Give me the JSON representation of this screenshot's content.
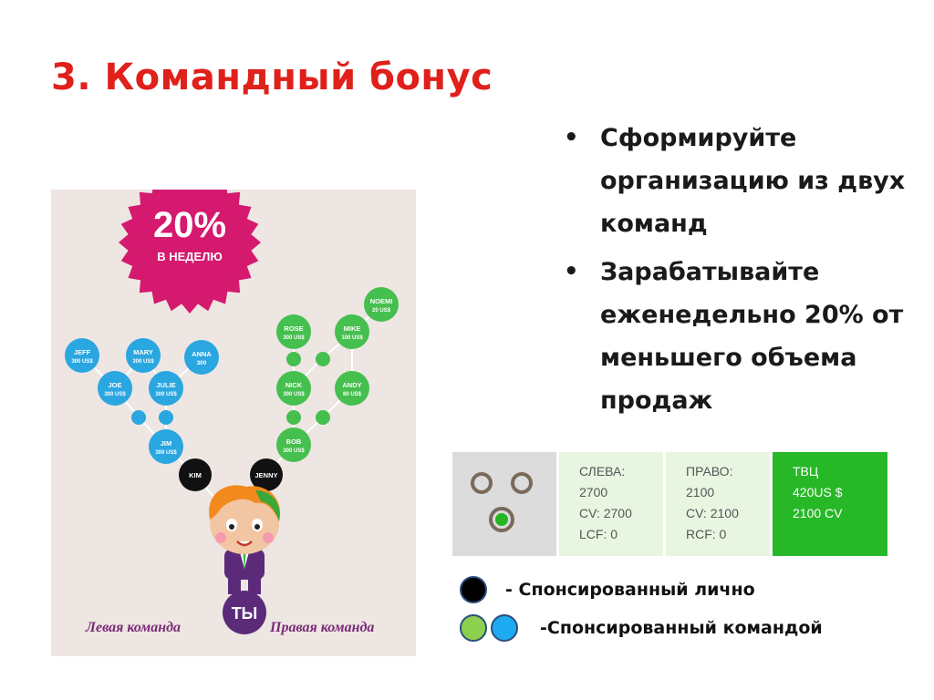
{
  "slide": {
    "title": "3. Командный бонус",
    "bullets": [
      "Сформируйте организацию из двух команд",
      "Зарабатывайте еженедельно 20% от меньшего объема продаж"
    ]
  },
  "infographic": {
    "badge": {
      "percent": "20%",
      "period": "В НЕДЕЛЮ",
      "color": "#d4196e"
    },
    "nodes": {
      "jeff": [
        "JEFF",
        "300 US$"
      ],
      "mary": [
        "MARY",
        "300 US$"
      ],
      "anna": [
        "ANNA",
        "300"
      ],
      "joe": [
        "JOE",
        "300 US$"
      ],
      "julie": [
        "JULIE",
        "300 US$"
      ],
      "jim": [
        "JIM",
        "300 US$"
      ],
      "noemi": [
        "NOEMI",
        "20 US$"
      ],
      "rose": [
        "ROSE",
        "300 US$"
      ],
      "mike": [
        "MIKE",
        "100 US$"
      ],
      "nick": [
        "NICK",
        "300 US$"
      ],
      "andy": [
        "ANDY",
        "80 US$"
      ],
      "bob": [
        "BOB",
        "300 US$"
      ],
      "kim": [
        "KIM"
      ],
      "jenny": [
        "JENNY"
      ],
      "you": [
        "ТЫ"
      ]
    },
    "left_team": "Левая команда",
    "right_team": "Правая команда",
    "colors": {
      "blue": "#2aa6e0",
      "green": "#45bf4e",
      "dark": "#111111",
      "purple": "#5b2b7a"
    }
  },
  "stats": {
    "left": {
      "line1": "СЛЕВА:",
      "line2": "2700",
      "line3": "CV: 2700",
      "line4": "LCF: 0"
    },
    "right": {
      "line1": "ПРАВО:",
      "line2": "2100",
      "line3": "CV: 2100",
      "line4": "RCF: 0"
    },
    "tvc": {
      "line1": "ТВЦ",
      "line2": "420US $",
      "line3": "2100 CV"
    }
  },
  "legend": {
    "personal": "- Спонсированный лично",
    "team": "-Спонсированный командой",
    "colors": {
      "black": "#000000",
      "green": "#8dd04f",
      "blue": "#1eaaf1"
    }
  }
}
